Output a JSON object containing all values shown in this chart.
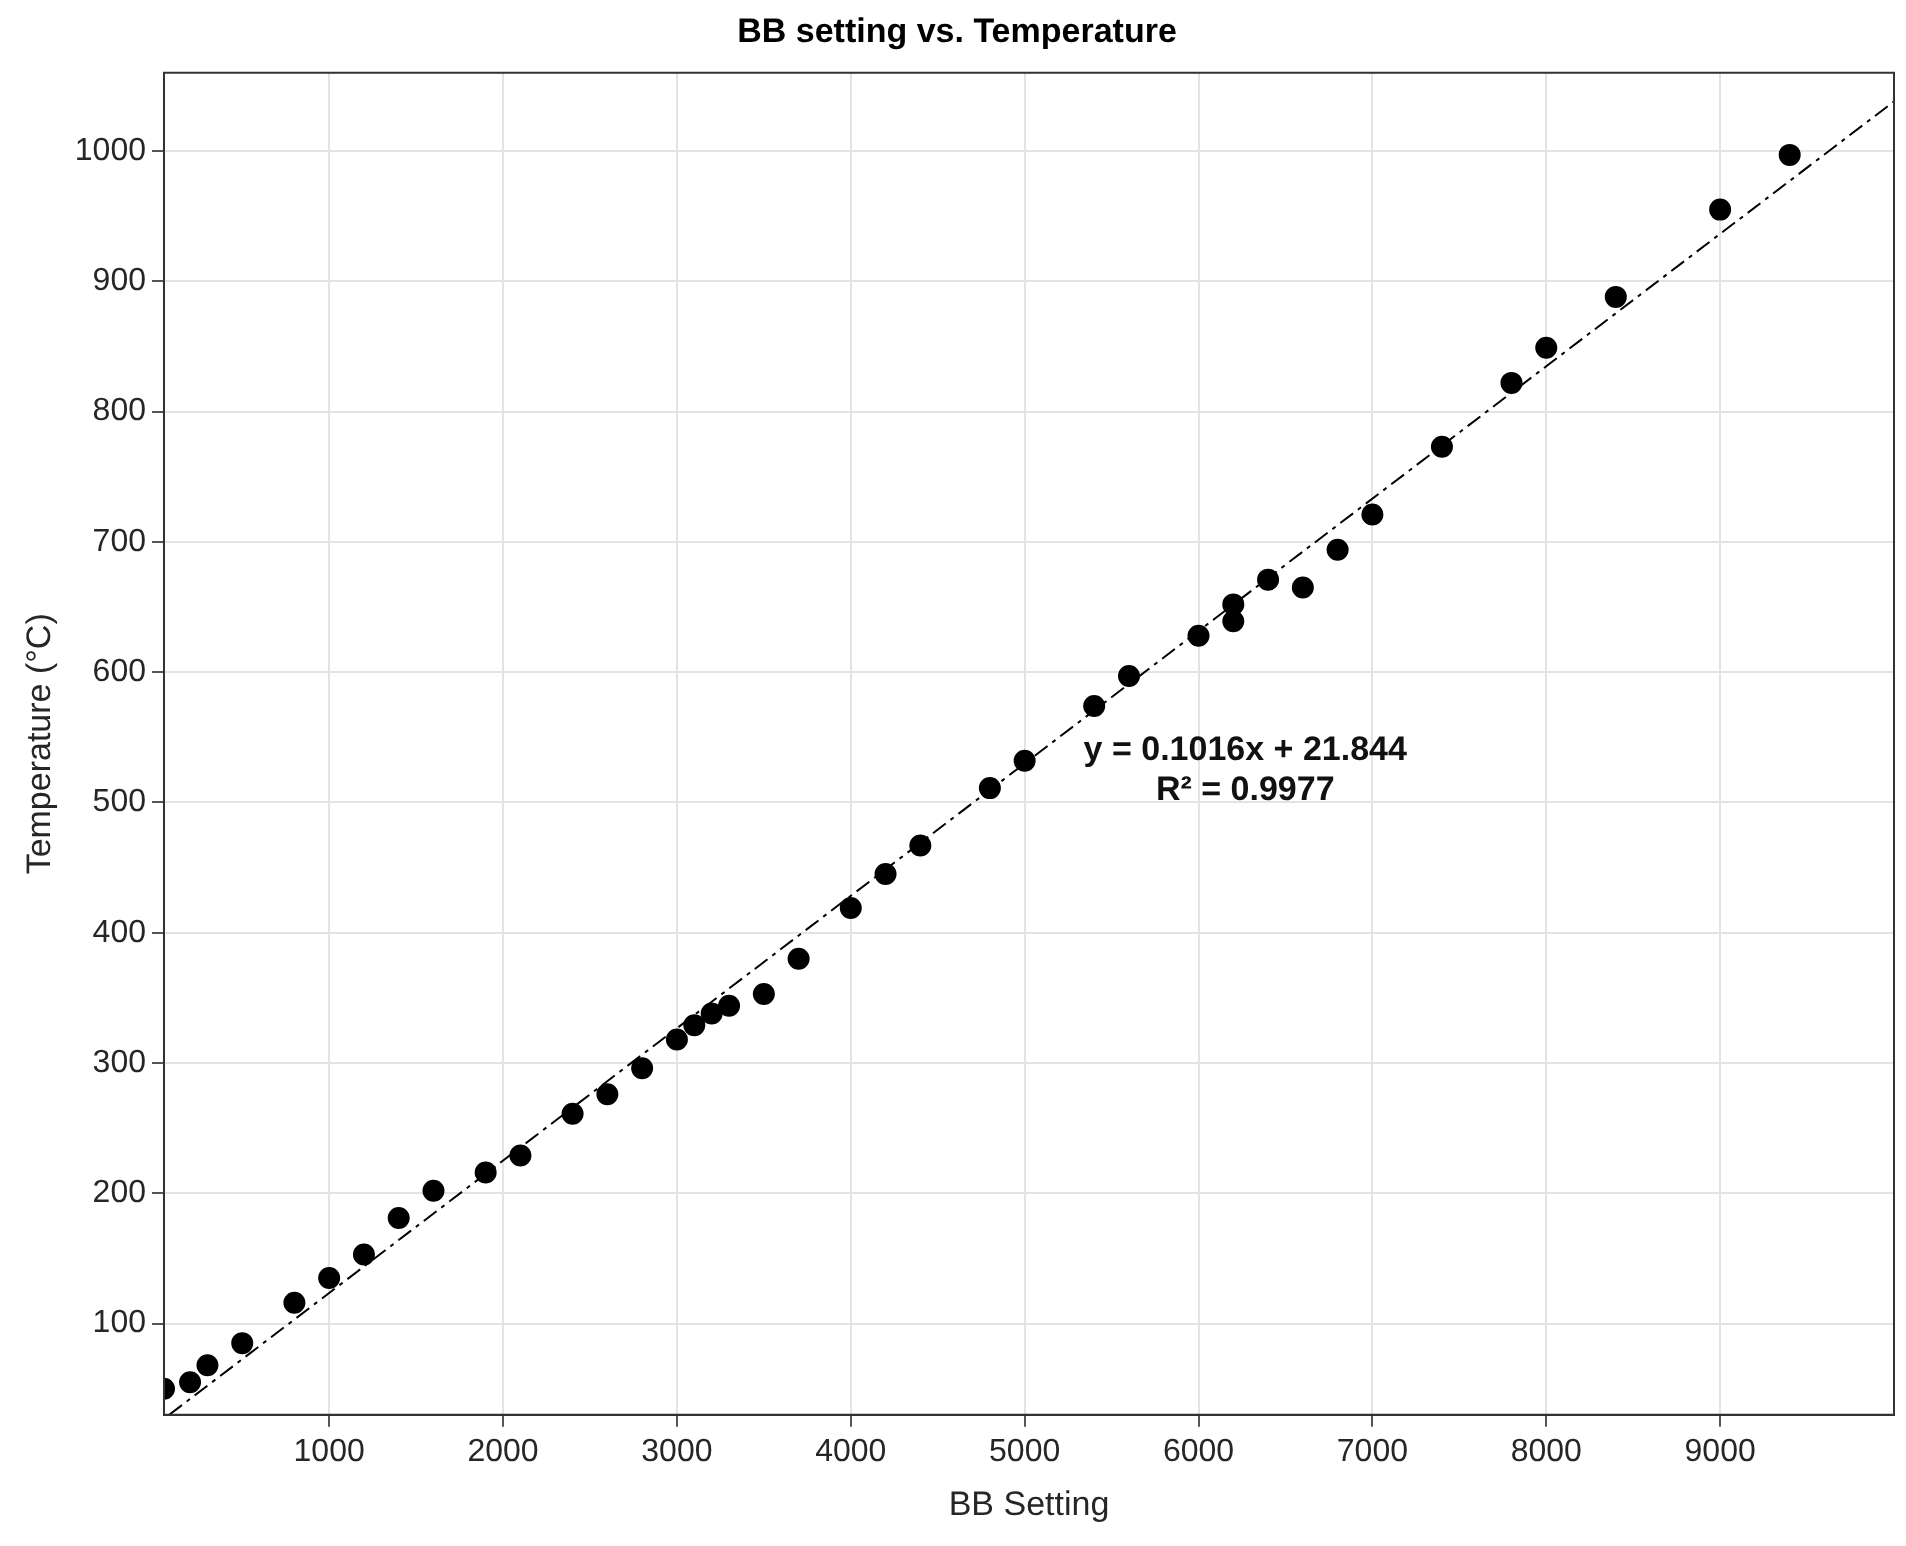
{
  "chart_data": {
    "type": "scatter",
    "title": "BB setting vs. Temperature",
    "xlabel": "BB Setting",
    "ylabel": "Temperature (°C)",
    "xlim": [
      50,
      10000
    ],
    "xticks": [
      1000,
      2000,
      3000,
      4000,
      5000,
      6000,
      7000,
      8000,
      9000
    ],
    "ylim": [
      30,
      1060
    ],
    "yticks": [
      100,
      200,
      300,
      400,
      500,
      600,
      700,
      800,
      900,
      1000
    ],
    "grid": true,
    "legend": false,
    "marker": "circle",
    "annotations": [
      "y = 0.1016x + 21.844",
      "R² = 0.9977"
    ],
    "series": [
      {
        "color": "#000000",
        "x": [
          50,
          200,
          300,
          500,
          800,
          1000,
          1200,
          1400,
          1600,
          1900,
          2100,
          2400,
          2600,
          2800,
          3000,
          3100,
          3200,
          3300,
          3500,
          3700,
          4000,
          4200,
          4400,
          4800,
          5000,
          5400,
          5600,
          6000,
          6200,
          6200,
          6400,
          6600,
          6800,
          7000,
          7400,
          7800,
          8000,
          8400,
          9000,
          9400
        ],
        "values": [
          50,
          55,
          68,
          85,
          116,
          135,
          153,
          181,
          202,
          216,
          229,
          261,
          276,
          296,
          318,
          329,
          338,
          344,
          353,
          380,
          419,
          445,
          467,
          511,
          532,
          574,
          597,
          628,
          639,
          652,
          671,
          665,
          694,
          721,
          773,
          822,
          849,
          888,
          955,
          997
        ]
      },
      {
        "type": "line",
        "color": "#000000",
        "line_style": "dashed",
        "marker": "none",
        "x": [
          80,
          10000
        ],
        "values": [
          30,
          1038
        ]
      }
    ]
  }
}
